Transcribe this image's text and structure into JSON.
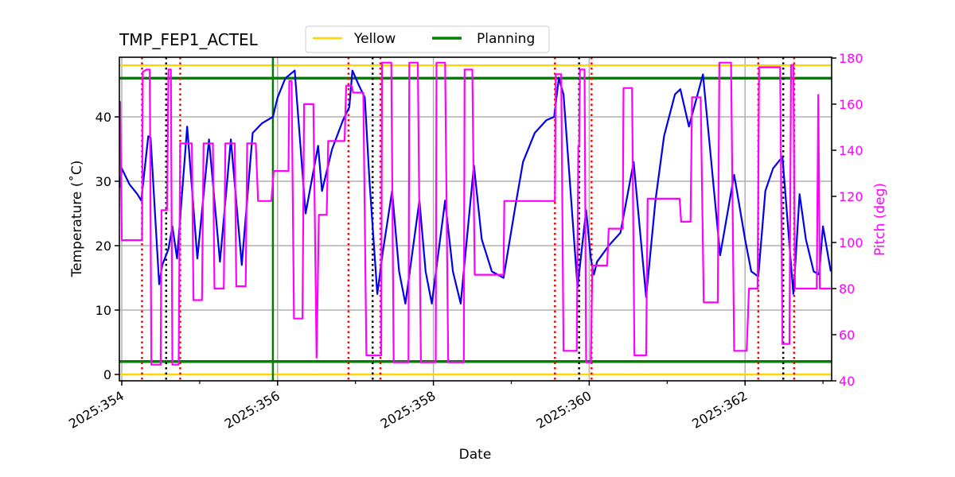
{
  "chart_data": {
    "type": "line",
    "title": "TMP_FEP1_ACTEL",
    "xlabel": "Date",
    "ylabel": "Temperature ($^\\circ$C)",
    "ylabel_display": "Temperature (˚C)",
    "y2label": "Pitch (deg)",
    "xlim": [
      353.97,
      363.1
    ],
    "ylim": [
      -1.0,
      49.2
    ],
    "y2lim": [
      40,
      180
    ],
    "xticks": [
      354,
      356,
      358,
      360,
      362
    ],
    "xtick_labels": [
      "2025:354",
      "2025:356",
      "2025:358",
      "2025:360",
      "2025:362"
    ],
    "xminor_ticks": [
      355,
      357,
      359,
      361,
      363
    ],
    "yticks": [
      0,
      10,
      20,
      30,
      40
    ],
    "y2ticks": [
      40,
      60,
      80,
      100,
      120,
      140,
      160,
      180
    ],
    "grid": true,
    "legend": {
      "position": "top center (above axes)",
      "entries": [
        {
          "label": "Yellow",
          "color": "#ffd700"
        },
        {
          "label": "Planning",
          "color": "#008000"
        }
      ]
    },
    "limits": {
      "yellow": {
        "low": 0.0,
        "high": 48.0,
        "color": "#ffd700"
      },
      "planning": {
        "low": 2.0,
        "high": 46.0,
        "color": "#008000"
      }
    },
    "vertical_lines": {
      "planning_marker": {
        "x": 355.94,
        "color": "#008000",
        "style": "solid"
      },
      "red_dotted": [
        354.26,
        354.75,
        356.91,
        357.32,
        359.56,
        360.03,
        362.17,
        362.63
      ],
      "black_dotted": [
        354.57,
        357.22,
        359.87,
        362.49
      ],
      "grey_grid": [
        354,
        356,
        358,
        360,
        362
      ]
    },
    "series": [
      {
        "name": "TMP_FEP1_ACTEL temperature",
        "axis": "left",
        "color": "#0000ee",
        "points": [
          [
            353.97,
            29.0
          ],
          [
            354.0,
            32.0
          ],
          [
            354.1,
            29.5
          ],
          [
            354.2,
            28.0
          ],
          [
            354.25,
            27.0
          ],
          [
            354.34,
            37.0
          ],
          [
            354.37,
            36.8
          ],
          [
            354.48,
            14.0
          ],
          [
            354.52,
            17.0
          ],
          [
            354.6,
            19.5
          ],
          [
            354.65,
            23.0
          ],
          [
            354.71,
            18.0
          ],
          [
            354.84,
            38.5
          ],
          [
            354.97,
            18.0
          ],
          [
            355.12,
            36.5
          ],
          [
            355.26,
            17.5
          ],
          [
            355.4,
            36.5
          ],
          [
            355.54,
            17.0
          ],
          [
            355.68,
            37.5
          ],
          [
            355.8,
            39.0
          ],
          [
            355.94,
            40.0
          ],
          [
            356.0,
            43.0
          ],
          [
            356.1,
            46.0
          ],
          [
            356.22,
            47.2
          ],
          [
            356.36,
            25.0
          ],
          [
            356.52,
            35.5
          ],
          [
            356.57,
            28.5
          ],
          [
            356.7,
            35.0
          ],
          [
            356.84,
            39.5
          ],
          [
            356.92,
            41.5
          ],
          [
            356.96,
            47.2
          ],
          [
            357.04,
            45.0
          ],
          [
            357.12,
            43.0
          ],
          [
            357.18,
            30.0
          ],
          [
            357.28,
            12.5
          ],
          [
            357.35,
            19.0
          ],
          [
            357.47,
            28.5
          ],
          [
            357.56,
            16.0
          ],
          [
            357.64,
            11.0
          ],
          [
            357.82,
            27.0
          ],
          [
            357.9,
            16.0
          ],
          [
            357.98,
            11.0
          ],
          [
            358.15,
            27.0
          ],
          [
            358.25,
            16.0
          ],
          [
            358.35,
            11.0
          ],
          [
            358.52,
            32.5
          ],
          [
            358.62,
            21.0
          ],
          [
            358.75,
            16.0
          ],
          [
            358.9,
            15.0
          ],
          [
            359.05,
            26.0
          ],
          [
            359.15,
            33.0
          ],
          [
            359.3,
            37.5
          ],
          [
            359.45,
            39.5
          ],
          [
            359.55,
            40.0
          ],
          [
            359.61,
            46.0
          ],
          [
            359.67,
            43.5
          ],
          [
            359.85,
            13.5
          ],
          [
            359.96,
            25.5
          ],
          [
            360.02,
            18.0
          ],
          [
            360.06,
            15.5
          ],
          [
            360.1,
            17.5
          ],
          [
            360.25,
            20.0
          ],
          [
            360.4,
            22.0
          ],
          [
            360.57,
            33.0
          ],
          [
            360.73,
            12.0
          ],
          [
            360.85,
            27.0
          ],
          [
            360.96,
            37.0
          ],
          [
            361.1,
            43.5
          ],
          [
            361.17,
            44.3
          ],
          [
            361.28,
            38.5
          ],
          [
            361.46,
            46.6
          ],
          [
            361.68,
            18.5
          ],
          [
            361.86,
            31.0
          ],
          [
            362.0,
            21.0
          ],
          [
            362.08,
            16.0
          ],
          [
            362.17,
            15.2
          ],
          [
            362.26,
            28.5
          ],
          [
            362.36,
            32.0
          ],
          [
            362.48,
            33.8
          ],
          [
            362.62,
            12.5
          ],
          [
            362.65,
            18.0
          ],
          [
            362.7,
            28.0
          ],
          [
            362.78,
            21.0
          ],
          [
            362.88,
            16.0
          ],
          [
            362.95,
            15.5
          ],
          [
            363.0,
            23.0
          ],
          [
            363.1,
            16.0
          ]
        ]
      },
      {
        "name": "Pitch",
        "axis": "right",
        "color": "#ff00ff",
        "points": [
          [
            353.97,
            161
          ],
          [
            353.98,
            161
          ],
          [
            354.0,
            101
          ],
          [
            354.26,
            101
          ],
          [
            354.27,
            174
          ],
          [
            354.32,
            175
          ],
          [
            354.36,
            175
          ],
          [
            354.38,
            47
          ],
          [
            354.5,
            47
          ],
          [
            354.51,
            114
          ],
          [
            354.58,
            114
          ],
          [
            354.6,
            175
          ],
          [
            354.63,
            175
          ],
          [
            354.65,
            47
          ],
          [
            354.73,
            47
          ],
          [
            354.75,
            143
          ],
          [
            354.9,
            143
          ],
          [
            354.92,
            75
          ],
          [
            355.03,
            75
          ],
          [
            355.05,
            143
          ],
          [
            355.17,
            143
          ],
          [
            355.19,
            80
          ],
          [
            355.31,
            80
          ],
          [
            355.33,
            143
          ],
          [
            355.45,
            143
          ],
          [
            355.47,
            81
          ],
          [
            355.59,
            81
          ],
          [
            355.61,
            143
          ],
          [
            355.72,
            143
          ],
          [
            355.75,
            118
          ],
          [
            355.92,
            118
          ],
          [
            355.95,
            131
          ],
          [
            356.14,
            131
          ],
          [
            356.15,
            170
          ],
          [
            356.18,
            170
          ],
          [
            356.21,
            67
          ],
          [
            356.32,
            67
          ],
          [
            356.34,
            160
          ],
          [
            356.46,
            160
          ],
          [
            356.5,
            50
          ],
          [
            356.53,
            112
          ],
          [
            356.63,
            112
          ],
          [
            356.65,
            144
          ],
          [
            356.86,
            144
          ],
          [
            356.88,
            168
          ],
          [
            356.95,
            168
          ],
          [
            356.97,
            165
          ],
          [
            357.1,
            165
          ],
          [
            357.14,
            51
          ],
          [
            357.33,
            51
          ],
          [
            357.34,
            178
          ],
          [
            357.46,
            178
          ],
          [
            357.49,
            48
          ],
          [
            357.68,
            48
          ],
          [
            357.69,
            178
          ],
          [
            357.8,
            178
          ],
          [
            357.84,
            48
          ],
          [
            358.03,
            48
          ],
          [
            358.04,
            178
          ],
          [
            358.15,
            178
          ],
          [
            358.19,
            48
          ],
          [
            358.39,
            48
          ],
          [
            358.4,
            175
          ],
          [
            358.5,
            175
          ],
          [
            358.53,
            86
          ],
          [
            358.9,
            86
          ],
          [
            358.91,
            118
          ],
          [
            359.56,
            118
          ],
          [
            359.57,
            173
          ],
          [
            359.64,
            173
          ],
          [
            359.67,
            53
          ],
          [
            359.84,
            53
          ],
          [
            359.86,
            142
          ],
          [
            359.87,
            142
          ],
          [
            359.88,
            175
          ],
          [
            359.94,
            175
          ],
          [
            359.96,
            48
          ],
          [
            360.02,
            48
          ],
          [
            360.04,
            90
          ],
          [
            360.23,
            90
          ],
          [
            360.25,
            106
          ],
          [
            360.43,
            106
          ],
          [
            360.44,
            167
          ],
          [
            360.55,
            167
          ],
          [
            360.58,
            51
          ],
          [
            360.73,
            51
          ],
          [
            360.75,
            119
          ],
          [
            361.16,
            119
          ],
          [
            361.18,
            109
          ],
          [
            361.3,
            109
          ],
          [
            361.32,
            163
          ],
          [
            361.43,
            163
          ],
          [
            361.47,
            74
          ],
          [
            361.65,
            74
          ],
          [
            361.67,
            178
          ],
          [
            361.82,
            178
          ],
          [
            361.86,
            53
          ],
          [
            362.02,
            53
          ],
          [
            362.05,
            80
          ],
          [
            362.16,
            80
          ],
          [
            362.18,
            176
          ],
          [
            362.45,
            176
          ],
          [
            362.48,
            56
          ],
          [
            362.57,
            56
          ],
          [
            362.59,
            177
          ],
          [
            362.62,
            177
          ],
          [
            362.64,
            80
          ],
          [
            362.92,
            80
          ],
          [
            362.94,
            164
          ],
          [
            362.96,
            80
          ],
          [
            363.1,
            80
          ]
        ]
      }
    ]
  }
}
